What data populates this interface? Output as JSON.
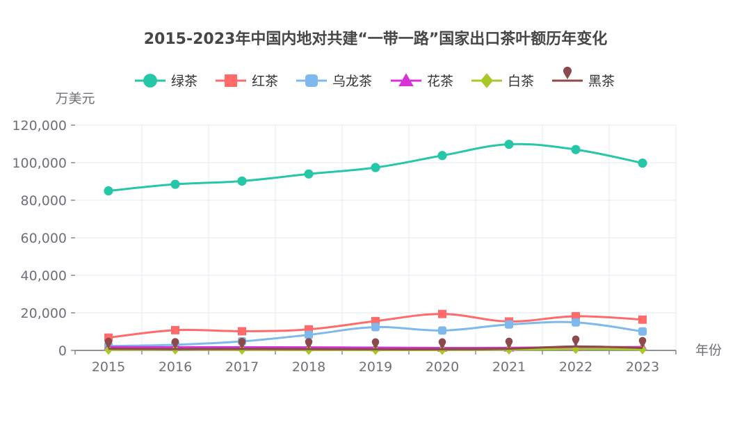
{
  "chart_data": {
    "type": "line",
    "title": "2015-2023年中国内地对共建“一带一路”国家出口茶叶额历年变化",
    "xlabel": "年份",
    "ylabel": "万美元",
    "categories": [
      "2015",
      "2016",
      "2017",
      "2018",
      "2019",
      "2020",
      "2021",
      "2022",
      "2023"
    ],
    "ylim": [
      0,
      120000
    ],
    "yticks": [
      0,
      20000,
      40000,
      60000,
      80000,
      100000,
      120000
    ],
    "ytick_labels": [
      "0",
      "20,000",
      "40,000",
      "60,000",
      "80,000",
      "100,000",
      "120,000"
    ],
    "grid": true,
    "legend_position": "top-center",
    "series": [
      {
        "name": "绿茶",
        "color": "#26c6a8",
        "marker": "circle",
        "values": [
          85000,
          88500,
          90200,
          94000,
          97400,
          103800,
          109800,
          107000,
          99800
        ]
      },
      {
        "name": "红茶",
        "color": "#ff6b6b",
        "marker": "square",
        "values": [
          6800,
          10800,
          10200,
          11200,
          15600,
          19400,
          15400,
          18200,
          16400
        ]
      },
      {
        "name": "乌龙茶",
        "color": "#7fb8ec",
        "marker": "roundrect",
        "values": [
          2300,
          3000,
          4800,
          8300,
          12400,
          10600,
          13800,
          14900,
          10100
        ]
      },
      {
        "name": "花茶",
        "color": "#d633d6",
        "marker": "triangle",
        "values": [
          1800,
          1700,
          1700,
          1600,
          1500,
          1300,
          1400,
          1700,
          1800
        ]
      },
      {
        "name": "白茶",
        "color": "#a8c82a",
        "marker": "diamond",
        "values": [
          300,
          400,
          300,
          200,
          200,
          200,
          400,
          700,
          500
        ]
      },
      {
        "name": "黑茶",
        "color": "#8c4a4a",
        "marker": "pin",
        "values": [
          900,
          700,
          800,
          700,
          600,
          600,
          900,
          2100,
          1300
        ]
      }
    ]
  }
}
